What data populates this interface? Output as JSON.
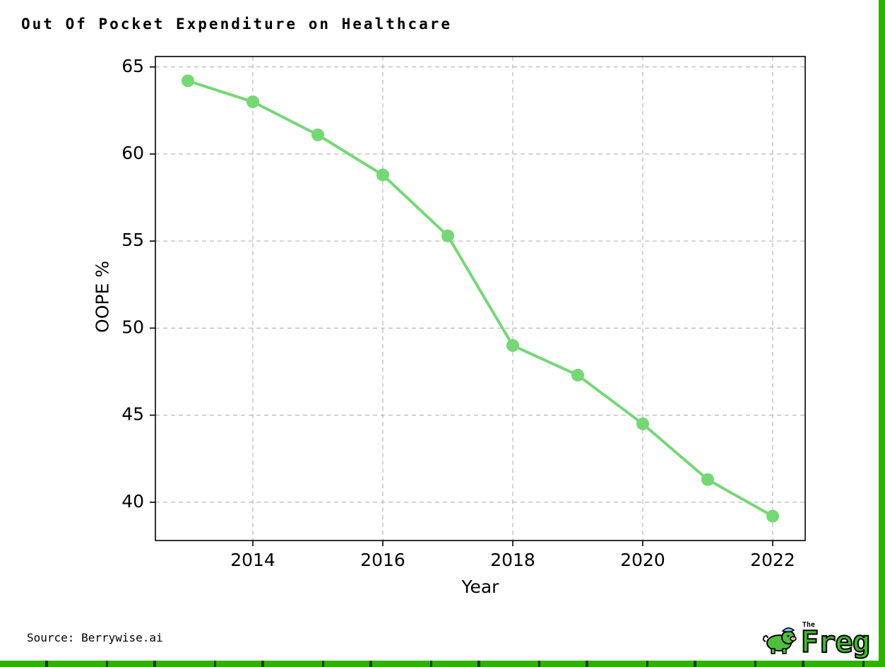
{
  "title": "Out Of Pocket Expenditure on Healthcare",
  "source": "Source: Berrywise.ai",
  "logo": {
    "the": "The",
    "name": "Freg"
  },
  "colors": {
    "line": "#74d874",
    "marker": "#74d874",
    "grid": "#aaaaaa",
    "axis": "#000000",
    "border_green": "#2db200",
    "logo_green": "#3dbb26"
  },
  "chart_data": {
    "type": "line",
    "x": [
      2013,
      2014,
      2015,
      2016,
      2017,
      2018,
      2019,
      2020,
      2021,
      2022
    ],
    "values": [
      64.2,
      63.0,
      61.1,
      58.8,
      55.3,
      49.0,
      47.3,
      44.5,
      41.3,
      39.2
    ],
    "series_name": "OOPE %",
    "title": "Out Of Pocket Expenditure on Healthcare",
    "xlabel": "Year",
    "ylabel": "OOPE %",
    "xlim": [
      2012.5,
      2022.5
    ],
    "ylim": [
      37.8,
      65.6
    ],
    "xticks": [
      2014,
      2016,
      2018,
      2020,
      2022
    ],
    "yticks": [
      40,
      45,
      50,
      55,
      60,
      65
    ],
    "grid": true,
    "grid_style": "dashed",
    "legend": false,
    "marker": "circle"
  }
}
